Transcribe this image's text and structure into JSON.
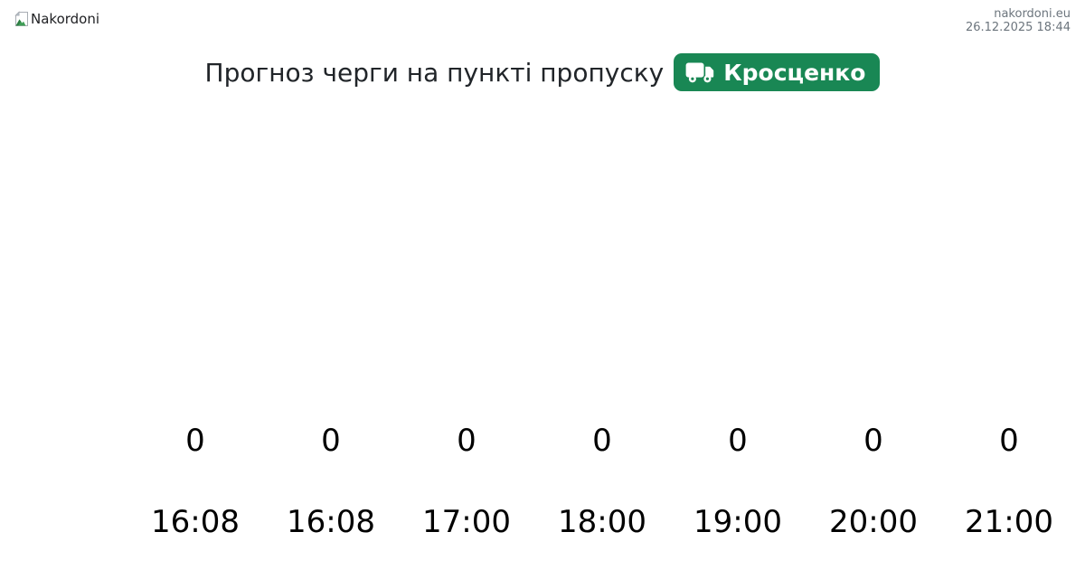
{
  "header": {
    "logo_alt": "Nakordoni",
    "site": "nakordoni.eu",
    "timestamp": "26.12.2025 18:44"
  },
  "title": {
    "text": "Прогноз черги на пункті пропуску",
    "badge": {
      "label": "Кросценко",
      "color": "#198754",
      "icon": "truck-icon"
    }
  },
  "chart_data": {
    "type": "bar",
    "title": "Прогноз черги на пункті пропуску",
    "categories": [
      "16:08",
      "16:08",
      "17:00",
      "18:00",
      "19:00",
      "20:00",
      "21:00"
    ],
    "values": [
      0,
      0,
      0,
      0,
      0,
      0,
      0
    ],
    "value_labels": [
      "0",
      "0",
      "0",
      "0",
      "0",
      "0",
      "0"
    ],
    "xlabel": "",
    "ylabel": "",
    "ylim": [
      0,
      1
    ],
    "grid": false,
    "legend": false
  }
}
